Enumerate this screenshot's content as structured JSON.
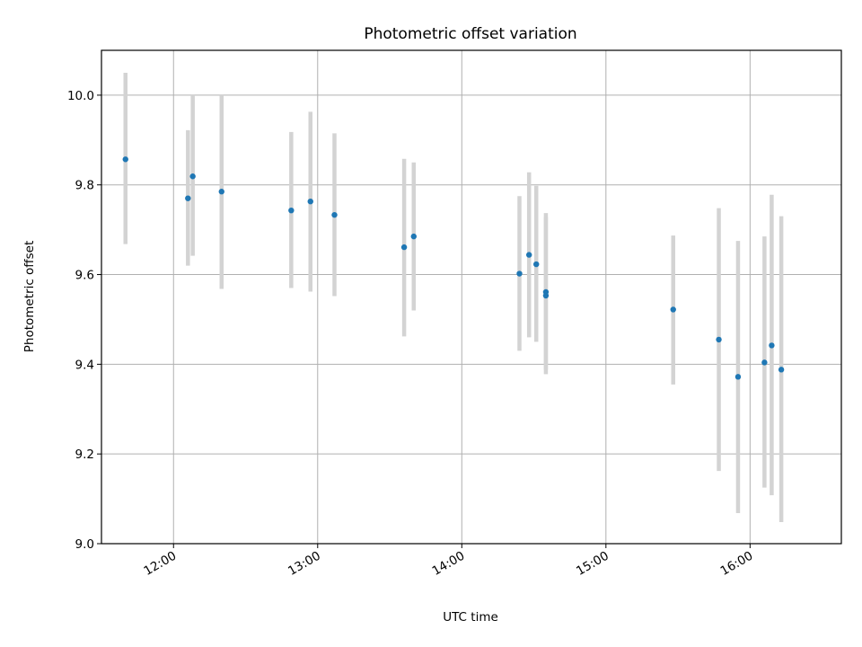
{
  "chart_data": {
    "type": "scatter",
    "title": "Photometric offset variation",
    "xlabel": "UTC time",
    "ylabel": "Photometric offset",
    "xlim": [
      "11:30",
      "16:38"
    ],
    "ylim": [
      9.0,
      10.1
    ],
    "xticks": [
      "12:00",
      "13:00",
      "14:00",
      "15:00",
      "16:00"
    ],
    "yticks": [
      9.0,
      9.2,
      9.4,
      9.6,
      9.8,
      10.0
    ],
    "grid": true,
    "legend": "none",
    "colors": {
      "point": "#1f77b4",
      "errorbar": "#d3d3d3",
      "grid": "#b0b0b0"
    },
    "series": [
      {
        "points": [
          {
            "x": "11:40",
            "y": 9.857,
            "ylow": 9.668,
            "yhigh": 10.05
          },
          {
            "x": "12:06",
            "y": 9.77,
            "ylow": 9.62,
            "yhigh": 9.922
          },
          {
            "x": "12:08",
            "y": 9.819,
            "ylow": 9.642,
            "yhigh": 10.0
          },
          {
            "x": "12:20",
            "y": 9.785,
            "ylow": 9.568,
            "yhigh": 10.0
          },
          {
            "x": "12:49",
            "y": 9.743,
            "ylow": 9.57,
            "yhigh": 9.918
          },
          {
            "x": "12:57",
            "y": 9.763,
            "ylow": 9.562,
            "yhigh": 9.963
          },
          {
            "x": "13:07",
            "y": 9.733,
            "ylow": 9.552,
            "yhigh": 9.915
          },
          {
            "x": "13:36",
            "y": 9.661,
            "ylow": 9.462,
            "yhigh": 9.858
          },
          {
            "x": "13:40",
            "y": 9.685,
            "ylow": 9.52,
            "yhigh": 9.85
          },
          {
            "x": "14:24",
            "y": 9.602,
            "ylow": 9.43,
            "yhigh": 9.775
          },
          {
            "x": "14:28",
            "y": 9.644,
            "ylow": 9.46,
            "yhigh": 9.828
          },
          {
            "x": "14:31",
            "y": 9.623,
            "ylow": 9.45,
            "yhigh": 9.798
          },
          {
            "x": "14:35",
            "y": 9.561,
            "ylow": 9.388,
            "yhigh": 9.737
          },
          {
            "x": "14:35",
            "y": 9.553,
            "ylow": 9.378,
            "yhigh": 9.728
          },
          {
            "x": "15:28",
            "y": 9.522,
            "ylow": 9.355,
            "yhigh": 9.687
          },
          {
            "x": "15:47",
            "y": 9.455,
            "ylow": 9.162,
            "yhigh": 9.748
          },
          {
            "x": "15:55",
            "y": 9.372,
            "ylow": 9.068,
            "yhigh": 9.675
          },
          {
            "x": "16:06",
            "y": 9.404,
            "ylow": 9.125,
            "yhigh": 9.685
          },
          {
            "x": "16:09",
            "y": 9.442,
            "ylow": 9.108,
            "yhigh": 9.778
          },
          {
            "x": "16:13",
            "y": 9.388,
            "ylow": 9.048,
            "yhigh": 9.73
          }
        ]
      }
    ]
  }
}
